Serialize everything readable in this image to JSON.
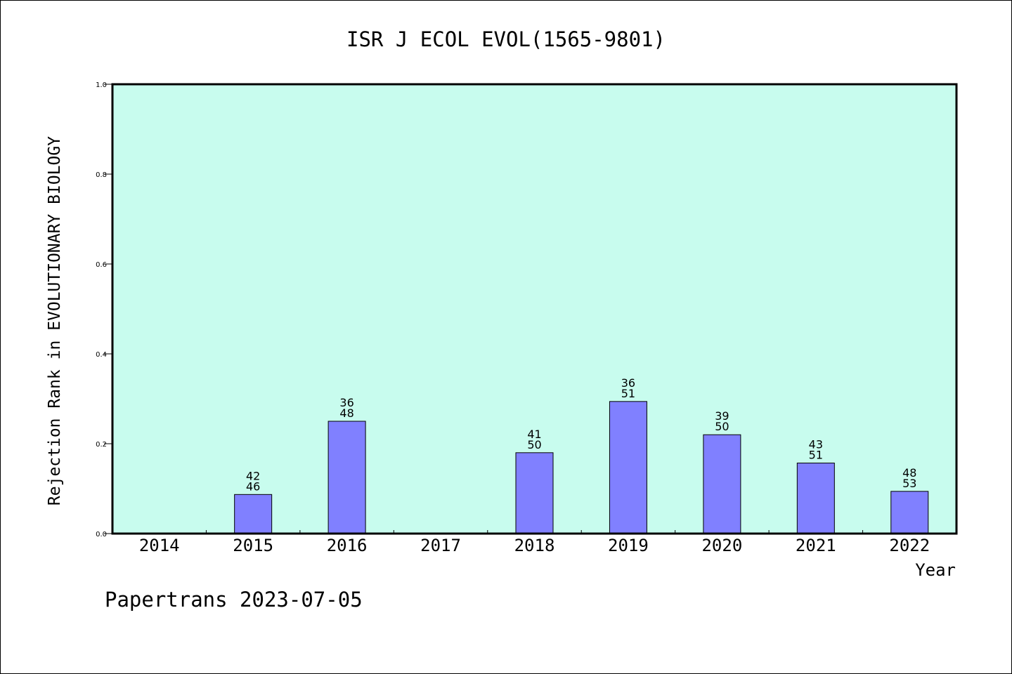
{
  "chart_data": {
    "type": "bar",
    "title": "ISR J ECOL EVOL(1565-9801)",
    "xlabel": "Year",
    "ylabel": "Rejection Rank in EVOLUTIONARY BIOLOGY",
    "ylim": [
      0,
      1.0
    ],
    "yticks": [
      "0.0",
      "0.2",
      "0.4",
      "0.6",
      "0.8",
      "1.0"
    ],
    "categories": [
      "2014",
      "2015",
      "2016",
      "2017",
      "2018",
      "2019",
      "2020",
      "2021",
      "2022"
    ],
    "values": [
      null,
      0.087,
      0.25,
      null,
      0.18,
      0.294,
      0.22,
      0.157,
      0.094
    ],
    "labels_top": [
      "",
      "42",
      "36",
      "",
      "41",
      "36",
      "39",
      "43",
      "48"
    ],
    "labels_bottom": [
      "",
      "46",
      "48",
      "",
      "50",
      "51",
      "50",
      "51",
      "53"
    ],
    "grid": false,
    "colors": {
      "plot_background": "#c8fcee",
      "bar_fill": "#8080ff",
      "bar_stroke": "#000000"
    }
  },
  "footer": "Papertrans 2023-07-05"
}
